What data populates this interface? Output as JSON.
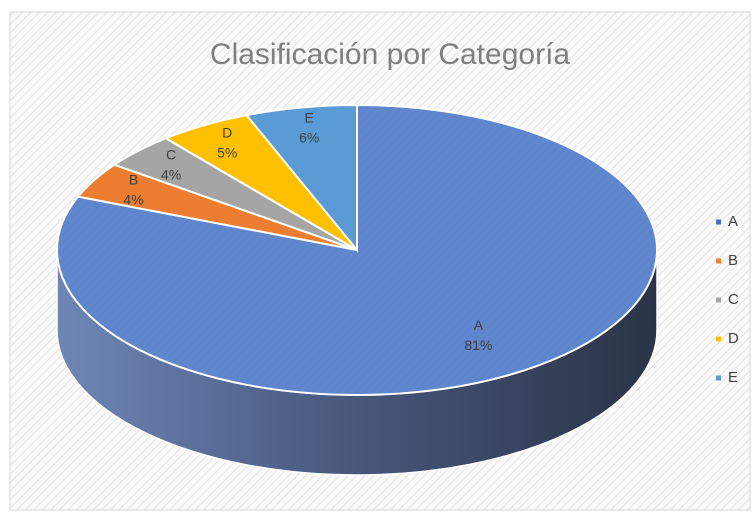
{
  "chart_data": {
    "type": "pie",
    "title": "Clasificación por Categoría",
    "categories": [
      "A",
      "B",
      "C",
      "D",
      "E"
    ],
    "values": [
      81,
      4,
      4,
      5,
      6
    ],
    "value_labels": [
      "81%",
      "4%",
      "4%",
      "5%",
      "6%"
    ],
    "colors": [
      "#4472c4",
      "#ed7d31",
      "#a5a5a5",
      "#ffc000",
      "#5b9bd5"
    ],
    "legend": "right"
  }
}
